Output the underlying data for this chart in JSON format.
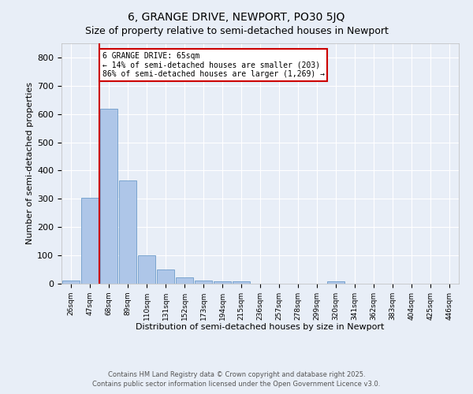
{
  "title": "6, GRANGE DRIVE, NEWPORT, PO30 5JQ",
  "subtitle": "Size of property relative to semi-detached houses in Newport",
  "xlabel": "Distribution of semi-detached houses by size in Newport",
  "ylabel": "Number of semi-detached properties",
  "bar_labels": [
    "26sqm",
    "47sqm",
    "68sqm",
    "89sqm",
    "110sqm",
    "131sqm",
    "152sqm",
    "173sqm",
    "194sqm",
    "215sqm",
    "236sqm",
    "257sqm",
    "278sqm",
    "299sqm",
    "320sqm",
    "341sqm",
    "362sqm",
    "383sqm",
    "404sqm",
    "425sqm",
    "446sqm"
  ],
  "bar_values": [
    12,
    303,
    620,
    365,
    100,
    50,
    22,
    10,
    8,
    8,
    0,
    0,
    0,
    0,
    8,
    0,
    0,
    0,
    0,
    0,
    0
  ],
  "bar_color": "#aec6e8",
  "bar_edgecolor": "#5a8fc2",
  "background_color": "#e8eef7",
  "grid_color": "#ffffff",
  "vline_x": 1.5,
  "vline_color": "#cc0000",
  "annotation_text": "6 GRANGE DRIVE: 65sqm\n← 14% of semi-detached houses are smaller (203)\n86% of semi-detached houses are larger (1,269) →",
  "annotation_box_edgecolor": "#cc0000",
  "annotation_box_facecolor": "#ffffff",
  "ylim": [
    0,
    850
  ],
  "yticks": [
    0,
    100,
    200,
    300,
    400,
    500,
    600,
    700,
    800
  ],
  "title_fontsize": 10,
  "subtitle_fontsize": 9,
  "footnote1": "Contains HM Land Registry data © Crown copyright and database right 2025.",
  "footnote2": "Contains public sector information licensed under the Open Government Licence v3.0."
}
